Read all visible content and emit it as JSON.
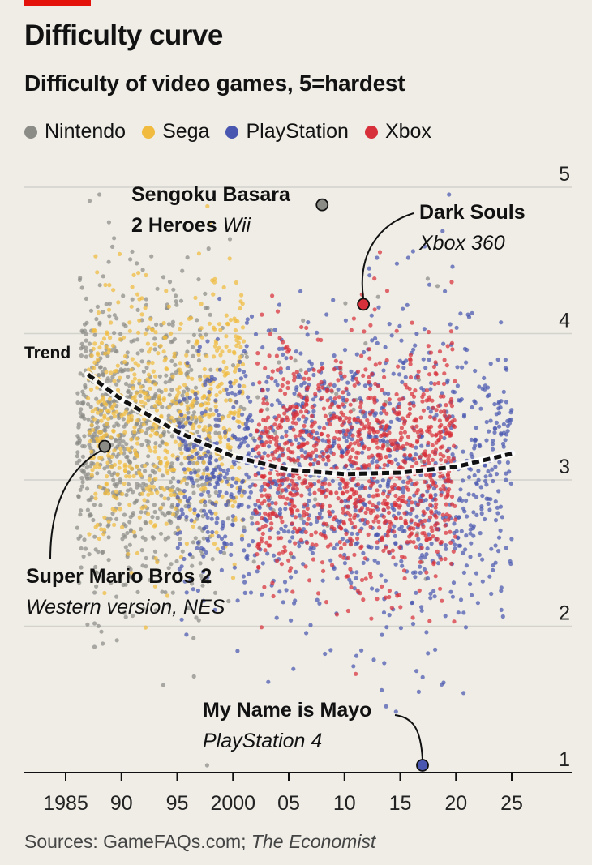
{
  "title": "Difficulty curve",
  "subtitle": "Difficulty of video games, 5=hardest",
  "legend": [
    {
      "label": "Nintendo",
      "color": "#8c8c86"
    },
    {
      "label": "Sega",
      "color": "#f0bb3f"
    },
    {
      "label": "PlayStation",
      "color": "#4a57b0"
    },
    {
      "label": "Xbox",
      "color": "#d8303a"
    }
  ],
  "source": {
    "prefix": "Sources: GameFAQs.com; ",
    "italic": "The Economist"
  },
  "chart_data": {
    "type": "scatter",
    "title": "Difficulty curve",
    "subtitle": "Difficulty of video games, 5=hardest",
    "xlabel": "",
    "ylabel": "",
    "xlim": [
      1981,
      2030
    ],
    "ylim": [
      1,
      5
    ],
    "x_ticks": [
      1985,
      1990,
      1995,
      2000,
      2005,
      2010,
      2015,
      2020,
      2025
    ],
    "x_tick_labels": [
      "1985",
      "90",
      "95",
      "2000",
      "05",
      "10",
      "15",
      "20",
      "25"
    ],
    "y_ticks": [
      1,
      2,
      3,
      4,
      5
    ],
    "y_tick_labels": [
      "1",
      "2",
      "3",
      "4",
      "5"
    ],
    "grid": true,
    "series": [
      {
        "name": "Nintendo",
        "color": "#8c8c86",
        "center_x": 1992,
        "spread_x": 6,
        "center_y": 3.3,
        "spread_y": 0.55,
        "count": 900
      },
      {
        "name": "Sega",
        "color": "#f0bb3f",
        "center_x": 1993,
        "spread_x": 3.5,
        "center_y": 3.45,
        "spread_y": 0.45,
        "count": 650
      },
      {
        "name": "PlayStation",
        "color": "#4a57b0",
        "center_x": 2008,
        "spread_x": 7,
        "center_y": 3.1,
        "spread_y": 0.5,
        "count": 1300
      },
      {
        "name": "Xbox",
        "color": "#d8303a",
        "center_x": 2011,
        "spread_x": 4.5,
        "center_y": 3.05,
        "spread_y": 0.42,
        "count": 1100
      }
    ],
    "trend": {
      "label": "Trend",
      "x": [
        1987,
        1990,
        1995,
        2000,
        2005,
        2010,
        2015,
        2020,
        2025
      ],
      "y": [
        3.72,
        3.55,
        3.33,
        3.16,
        3.07,
        3.04,
        3.05,
        3.09,
        3.18
      ]
    },
    "annotations": [
      {
        "title": "Sengoku Basara",
        "title2": "2 Heroes",
        "subtitle": "Wii",
        "x": 2008,
        "y": 4.88,
        "color": "#8c8c86"
      },
      {
        "title": "Dark Souls",
        "subtitle": "Xbox 360",
        "x": 2011.7,
        "y": 4.2,
        "color": "#d8303a"
      },
      {
        "title": "Super Mario Bros 2",
        "subtitle": "Western version, NES",
        "x": 1988.5,
        "y": 3.23,
        "color": "#8c8c86"
      },
      {
        "title": "My Name is Mayo",
        "subtitle": "PlayStation 4",
        "x": 2017,
        "y": 1.05,
        "color": "#4a57b0"
      }
    ]
  }
}
